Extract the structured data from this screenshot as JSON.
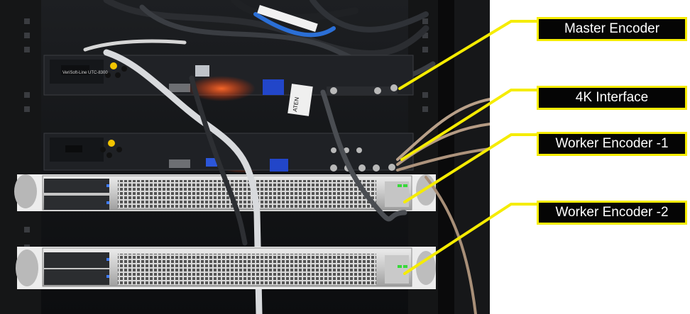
{
  "labels": {
    "master_encoder": "Master Encoder",
    "interface_4k": "4K Interface",
    "worker_encoder_1": "Worker Encoder -1",
    "worker_encoder_2": "Worker Encoder -2"
  },
  "device_text": {
    "front_panel_model": "VeriSoft-Line UTC-8300",
    "kvm_brand": "ATEN"
  },
  "colors": {
    "callout_border": "#f5ec00",
    "callout_fill": "#050505",
    "callout_text": "#ffffff",
    "leader_line": "#f5ec00"
  }
}
